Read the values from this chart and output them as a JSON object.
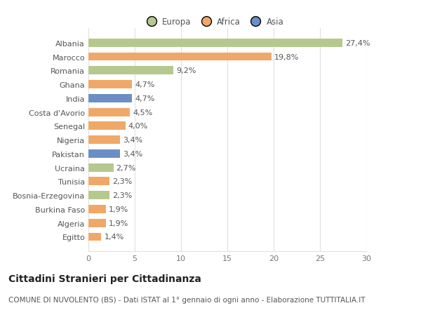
{
  "categories": [
    "Albania",
    "Marocco",
    "Romania",
    "Ghana",
    "India",
    "Costa d'Avorio",
    "Senegal",
    "Nigeria",
    "Pakistan",
    "Ucraina",
    "Tunisia",
    "Bosnia-Erzegovina",
    "Burkina Faso",
    "Algeria",
    "Egitto"
  ],
  "values": [
    27.4,
    19.8,
    9.2,
    4.7,
    4.7,
    4.5,
    4.0,
    3.4,
    3.4,
    2.7,
    2.3,
    2.3,
    1.9,
    1.9,
    1.4
  ],
  "labels": [
    "27,4%",
    "19,8%",
    "9,2%",
    "4,7%",
    "4,7%",
    "4,5%",
    "4,0%",
    "3,4%",
    "3,4%",
    "2,7%",
    "2,3%",
    "2,3%",
    "1,9%",
    "1,9%",
    "1,4%"
  ],
  "colors": [
    "#b5c98e",
    "#f0a868",
    "#b5c98e",
    "#f0a868",
    "#6b8fc4",
    "#f0a868",
    "#f0a868",
    "#f0a868",
    "#6b8fc4",
    "#b5c98e",
    "#f0a868",
    "#b5c98e",
    "#f0a868",
    "#f0a868",
    "#f0a868"
  ],
  "legend_labels": [
    "Europa",
    "Africa",
    "Asia"
  ],
  "legend_colors": [
    "#b5c98e",
    "#f0a868",
    "#6b8fc4"
  ],
  "title": "Cittadini Stranieri per Cittadinanza",
  "subtitle": "COMUNE DI NUVOLENTO (BS) - Dati ISTAT al 1° gennaio di ogni anno - Elaborazione TUTTITALIA.IT",
  "xlim": [
    0,
    30
  ],
  "xticks": [
    0,
    5,
    10,
    15,
    20,
    25,
    30
  ],
  "bg_color": "#ffffff",
  "grid_color": "#e0e0e0",
  "bar_height": 0.6,
  "label_fontsize": 8,
  "tick_fontsize": 8,
  "title_fontsize": 10,
  "subtitle_fontsize": 7.5
}
